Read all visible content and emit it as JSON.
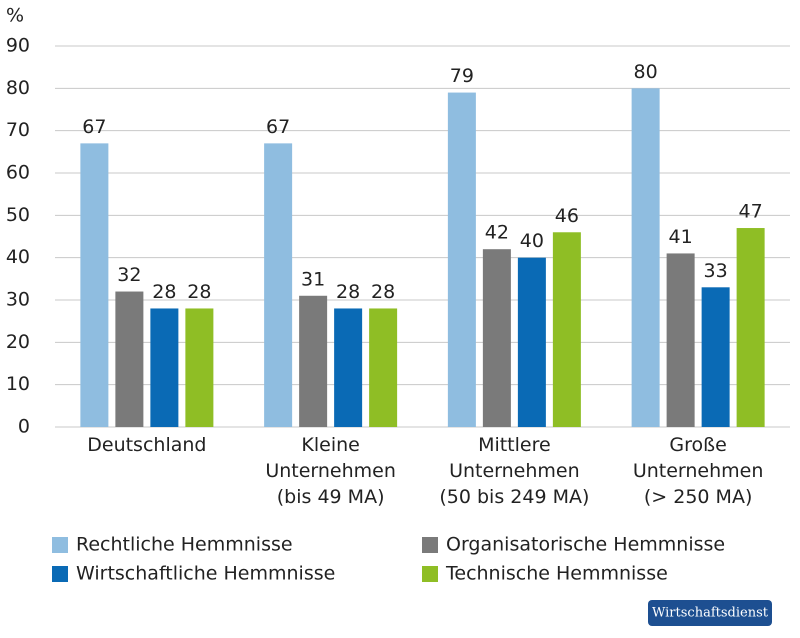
{
  "chart_data": {
    "type": "bar",
    "y_unit": "%",
    "categories": [
      "Deutschland",
      "Kleine\nUnternehmen\n(bis 49 MA)",
      "Mittlere\nUnternehmen\n(50 bis 249 MA)",
      "Große\nUnternehmen\n(> 250 MA)"
    ],
    "series": [
      {
        "name": "Rechtliche Hemmnisse",
        "color": "#8fbde0",
        "values": [
          67,
          67,
          79,
          80
        ]
      },
      {
        "name": "Organisatorische Hemmnisse",
        "color": "#7a7a7a",
        "values": [
          32,
          31,
          42,
          41
        ]
      },
      {
        "name": "Wirtschaftliche Hemmnisse",
        "color": "#0a6ab5",
        "values": [
          28,
          28,
          40,
          33
        ]
      },
      {
        "name": "Technische Hemmnisse",
        "color": "#8fbe25",
        "values": [
          28,
          28,
          46,
          47
        ]
      }
    ],
    "ylim": [
      0,
      90
    ],
    "yticks": [
      0,
      10,
      20,
      30,
      40,
      50,
      60,
      70,
      80,
      90
    ],
    "grid": true,
    "legend": "bottom",
    "source": "Wirtschaftsdienst"
  }
}
